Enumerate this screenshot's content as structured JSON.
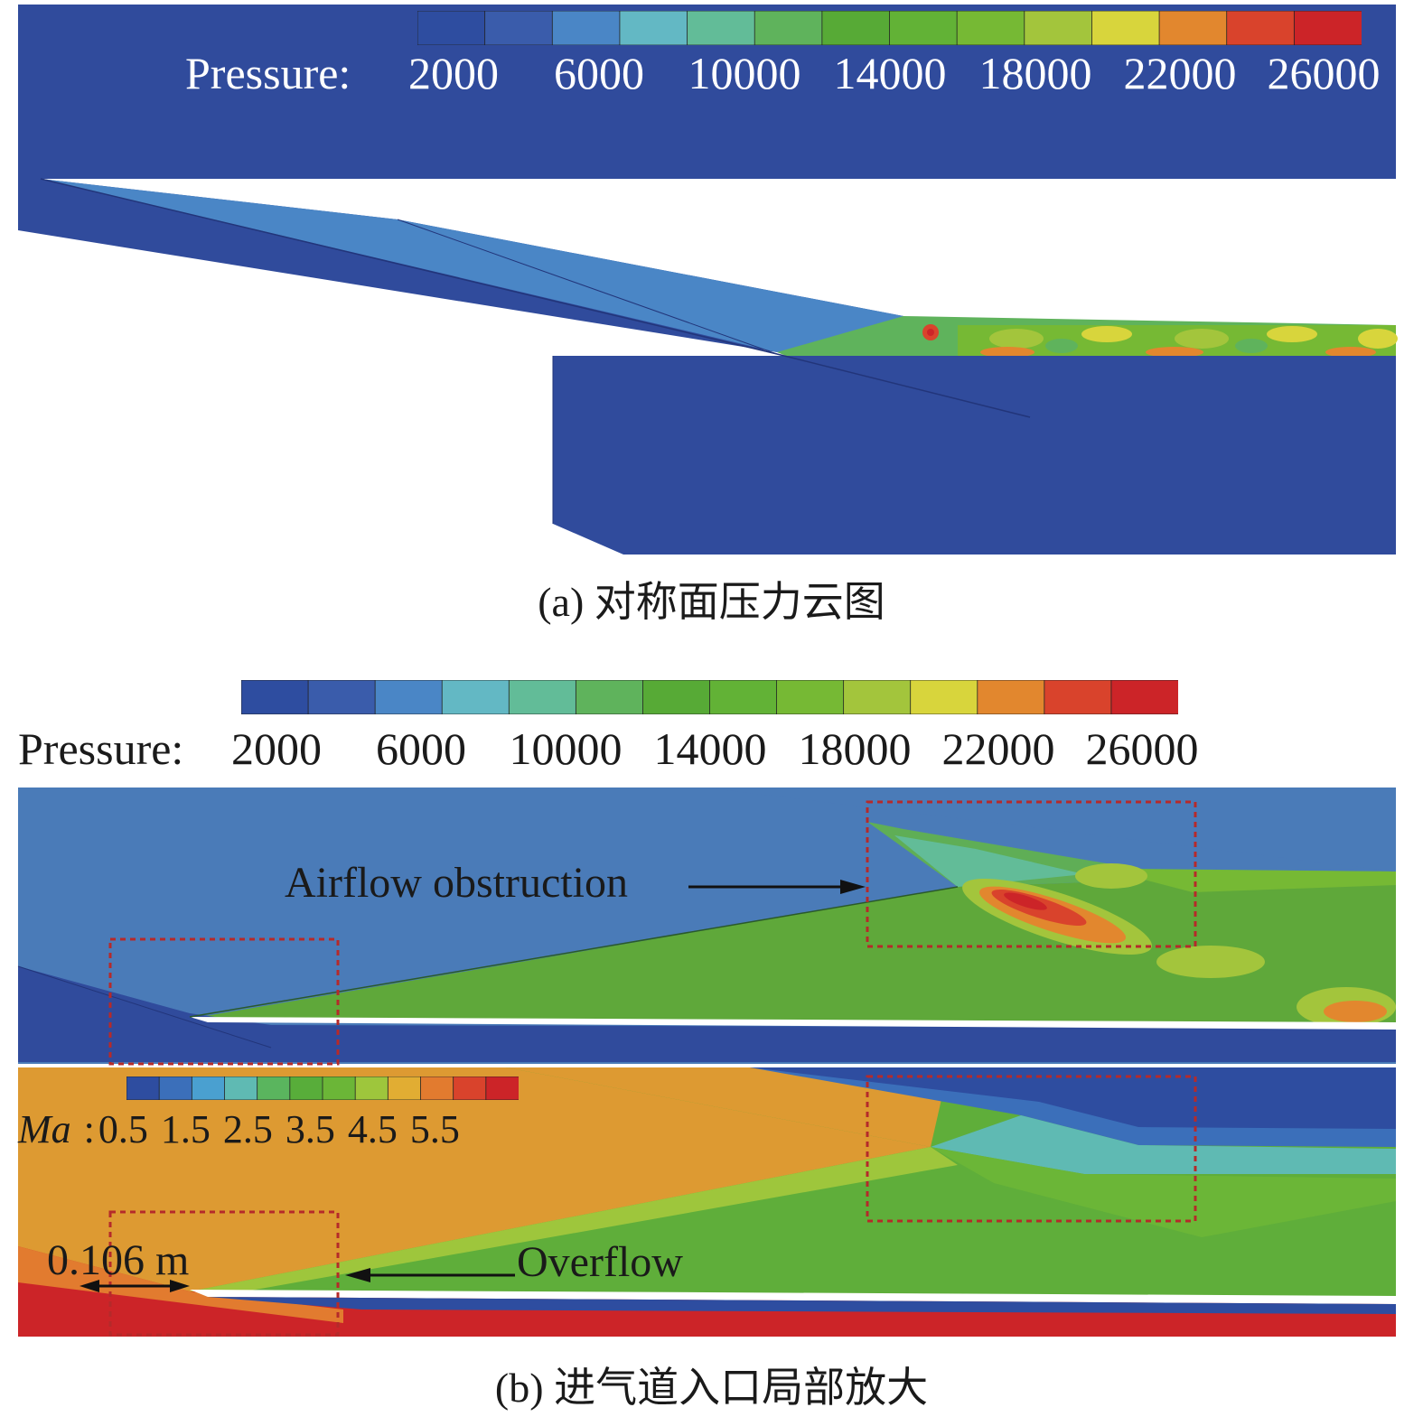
{
  "panel_a": {
    "legend": {
      "title": "Pressure:",
      "ticks": [
        "2000",
        "6000",
        "10000",
        "14000",
        "18000",
        "22000",
        "26000"
      ],
      "colors": [
        "#2e4da0",
        "#3a5cab",
        "#4a86c6",
        "#63b8c4",
        "#62bc98",
        "#5fb35c",
        "#57aa36",
        "#62b236",
        "#76b934",
        "#a3c53c",
        "#d8d53c",
        "#e2872e",
        "#d9432c",
        "#cc2428"
      ]
    },
    "caption": "(a) 对称面压力云图"
  },
  "panel_b": {
    "pressure_legend": {
      "title": "Pressure:",
      "ticks": [
        "2000",
        "6000",
        "10000",
        "14000",
        "18000",
        "22000",
        "26000"
      ],
      "colors": [
        "#2e4da0",
        "#3a5cab",
        "#4a86c6",
        "#63b8c4",
        "#62bc98",
        "#5fb35c",
        "#57aa36",
        "#62b236",
        "#76b934",
        "#a3c53c",
        "#d8d53c",
        "#e2872e",
        "#d9432c",
        "#cc2428"
      ]
    },
    "mach_legend": {
      "title_italic": "Ma",
      "title_suffix": ":",
      "ticks": [
        "0.5",
        "1.5",
        "2.5",
        "3.5",
        "4.5",
        "5.5"
      ],
      "colors": [
        "#2e4da0",
        "#3b6fba",
        "#4aa0d0",
        "#5fbab3",
        "#5ab55e",
        "#58ad3a",
        "#6bb637",
        "#9ec63c",
        "#e1ad33",
        "#e27b2f",
        "#d9432c",
        "#cc2428"
      ]
    },
    "annotations": {
      "obstruction": "Airflow obstruction",
      "overflow": "Overflow",
      "distance": "0.106 m"
    },
    "caption": "(b) 进气道入口局部放大"
  },
  "colors": {
    "freestream_blue": "#304b9c",
    "ramp_blue": "#4a85c6",
    "field_green": "#5fae3a",
    "freestream_orange": "#dd9a32",
    "high_red": "#d3342b",
    "dashed_box": "#b52a2a"
  }
}
